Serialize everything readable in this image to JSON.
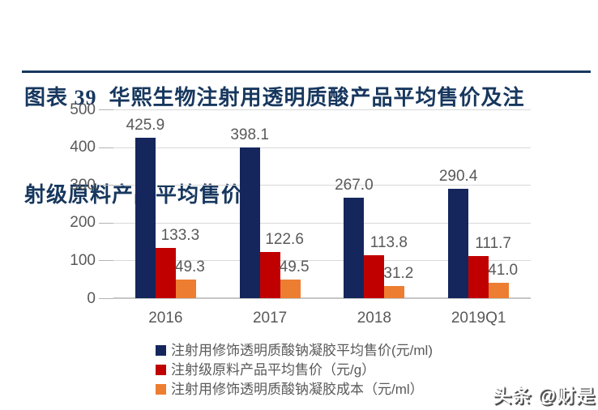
{
  "header": {
    "title_line1": "图表 39  华熙生物注射用透明质酸产品平均售价及注",
    "title_line2": "射级原料产品平均售价",
    "accent_color": "#17375e"
  },
  "watermark": {
    "text": "头条 @财是"
  },
  "colors": {
    "title_navy": "#17375e",
    "gridline": "#d9d9d9",
    "axis_text": "#595959",
    "series_navy": "#15265d",
    "series_red": "#c00000",
    "series_orange": "#ed7d31"
  },
  "chart_data": {
    "type": "bar",
    "categories": [
      "2016",
      "2017",
      "2018",
      "2019Q1"
    ],
    "series": [
      {
        "name": "注射用修饰透明质酸钠凝胶平均售价(元/ml)",
        "color": "#15265d",
        "values": [
          425.9,
          398.1,
          267.0,
          290.4
        ],
        "labels": [
          "425.9",
          "398.1",
          "267.0",
          "290.4"
        ]
      },
      {
        "name": "注射级原料产品平均售价（元/g）",
        "color": "#c00000",
        "values": [
          133.3,
          122.6,
          113.8,
          111.7
        ],
        "labels": [
          "133.3",
          "122.6",
          "113.8",
          "111.7"
        ]
      },
      {
        "name": "注射用修饰透明质酸钠凝胶成本（元/ml）",
        "color": "#ed7d31",
        "values": [
          49.3,
          49.5,
          31.2,
          41.0
        ],
        "labels": [
          "49.3",
          "49.5",
          "31.2",
          "41.0"
        ]
      }
    ],
    "title": "",
    "xlabel": "",
    "ylabel": "",
    "ylim": [
      0,
      500
    ],
    "yticks": [
      0,
      100,
      200,
      300,
      400,
      500
    ],
    "grid": true,
    "legend_position": "bottom-left",
    "data_labels": true
  }
}
